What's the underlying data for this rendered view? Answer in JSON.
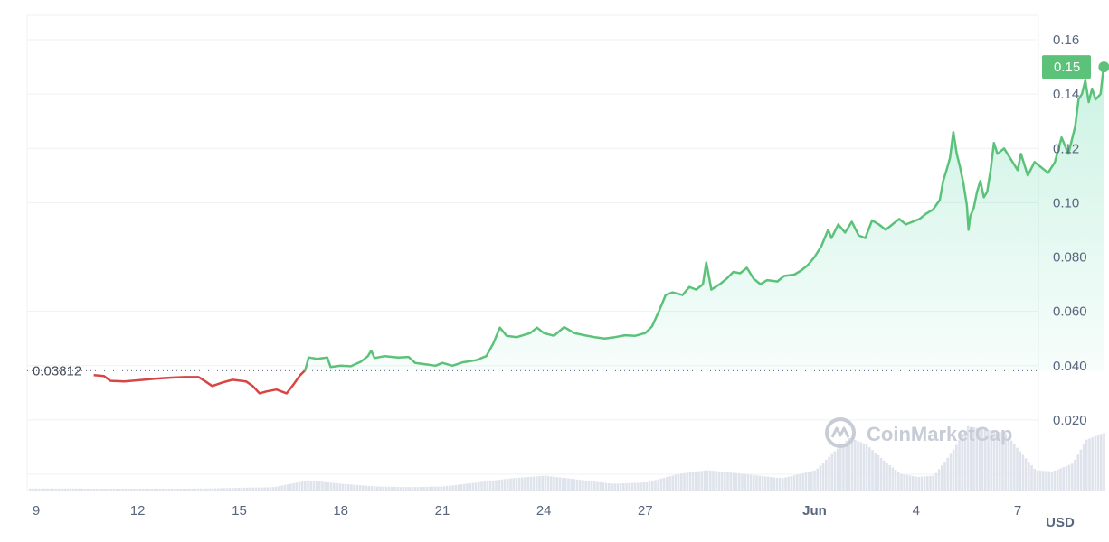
{
  "chart_data": {
    "type": "line",
    "currency_label": "USD",
    "watermark": "CoinMarketCap",
    "reference_label": "0.03812",
    "reference_value": 0.03812,
    "last_price_label": "0.15",
    "last_price_value": 0.15,
    "ylim": [
      0,
      0.165
    ],
    "y_ticks": [
      {
        "label": "0.16",
        "value": 0.16
      },
      {
        "label": "0.14",
        "value": 0.14
      },
      {
        "label": "0.12",
        "value": 0.12
      },
      {
        "label": "0.10",
        "value": 0.1
      },
      {
        "label": "0.080",
        "value": 0.08
      },
      {
        "label": "0.060",
        "value": 0.06
      },
      {
        "label": "0.040",
        "value": 0.04
      },
      {
        "label": "0.020",
        "value": 0.02
      }
    ],
    "x_ticks": [
      {
        "label": "9",
        "day": 9,
        "bold": false
      },
      {
        "label": "12",
        "day": 12,
        "bold": false
      },
      {
        "label": "15",
        "day": 15,
        "bold": false
      },
      {
        "label": "18",
        "day": 18,
        "bold": false
      },
      {
        "label": "21",
        "day": 21,
        "bold": false
      },
      {
        "label": "24",
        "day": 24,
        "bold": false
      },
      {
        "label": "27",
        "day": 27,
        "bold": false
      },
      {
        "label": "Jun",
        "day": 32,
        "bold": true
      },
      {
        "label": "4",
        "day": 35,
        "bold": false
      },
      {
        "label": "7",
        "day": 38,
        "bold": false
      }
    ],
    "xlim": [
      8.9,
      39.3
    ],
    "grid": true,
    "colors": {
      "up": "#16c784",
      "line_up": "#5cc27a",
      "down": "#d84545",
      "volume": "#dfe3ec"
    },
    "price": [
      [
        10.7,
        0.0365
      ],
      [
        11.0,
        0.0362
      ],
      [
        11.2,
        0.0344
      ],
      [
        11.6,
        0.0342
      ],
      [
        12.0,
        0.0346
      ],
      [
        12.5,
        0.0352
      ],
      [
        13.0,
        0.0356
      ],
      [
        13.4,
        0.0358
      ],
      [
        13.8,
        0.0358
      ],
      [
        14.0,
        0.0342
      ],
      [
        14.2,
        0.0325
      ],
      [
        14.5,
        0.0338
      ],
      [
        14.8,
        0.0348
      ],
      [
        15.2,
        0.0342
      ],
      [
        15.4,
        0.0325
      ],
      [
        15.6,
        0.0298
      ],
      [
        15.8,
        0.0305
      ],
      [
        16.1,
        0.0312
      ],
      [
        16.4,
        0.0298
      ],
      [
        16.6,
        0.033
      ],
      [
        16.8,
        0.0365
      ],
      [
        16.95,
        0.0383
      ],
      [
        17.05,
        0.043
      ],
      [
        17.3,
        0.0425
      ],
      [
        17.6,
        0.043
      ],
      [
        17.7,
        0.0395
      ],
      [
        18.0,
        0.04
      ],
      [
        18.3,
        0.0398
      ],
      [
        18.6,
        0.0415
      ],
      [
        18.8,
        0.0435
      ],
      [
        18.9,
        0.0455
      ],
      [
        19.0,
        0.0428
      ],
      [
        19.3,
        0.0435
      ],
      [
        19.7,
        0.043
      ],
      [
        20.0,
        0.0432
      ],
      [
        20.2,
        0.041
      ],
      [
        20.5,
        0.0405
      ],
      [
        20.8,
        0.04
      ],
      [
        21.0,
        0.041
      ],
      [
        21.3,
        0.04
      ],
      [
        21.6,
        0.0412
      ],
      [
        22.0,
        0.042
      ],
      [
        22.3,
        0.0435
      ],
      [
        22.5,
        0.048
      ],
      [
        22.7,
        0.054
      ],
      [
        22.9,
        0.051
      ],
      [
        23.2,
        0.0505
      ],
      [
        23.6,
        0.052
      ],
      [
        23.8,
        0.054
      ],
      [
        24.0,
        0.052
      ],
      [
        24.3,
        0.051
      ],
      [
        24.6,
        0.0542
      ],
      [
        24.9,
        0.052
      ],
      [
        25.2,
        0.0512
      ],
      [
        25.5,
        0.0505
      ],
      [
        25.8,
        0.05
      ],
      [
        26.1,
        0.0505
      ],
      [
        26.4,
        0.0512
      ],
      [
        26.7,
        0.051
      ],
      [
        27.0,
        0.052
      ],
      [
        27.2,
        0.0545
      ],
      [
        27.4,
        0.06
      ],
      [
        27.6,
        0.066
      ],
      [
        27.8,
        0.067
      ],
      [
        28.1,
        0.066
      ],
      [
        28.3,
        0.069
      ],
      [
        28.5,
        0.068
      ],
      [
        28.7,
        0.07
      ],
      [
        28.8,
        0.078
      ],
      [
        28.95,
        0.068
      ],
      [
        29.2,
        0.07
      ],
      [
        29.4,
        0.072
      ],
      [
        29.6,
        0.0745
      ],
      [
        29.8,
        0.074
      ],
      [
        30.0,
        0.076
      ],
      [
        30.2,
        0.072
      ],
      [
        30.4,
        0.07
      ],
      [
        30.6,
        0.0715
      ],
      [
        30.9,
        0.071
      ],
      [
        31.1,
        0.073
      ],
      [
        31.4,
        0.0735
      ],
      [
        31.6,
        0.075
      ],
      [
        31.8,
        0.077
      ],
      [
        32.0,
        0.08
      ],
      [
        32.2,
        0.084
      ],
      [
        32.4,
        0.09
      ],
      [
        32.5,
        0.087
      ],
      [
        32.7,
        0.092
      ],
      [
        32.9,
        0.089
      ],
      [
        33.1,
        0.093
      ],
      [
        33.3,
        0.088
      ],
      [
        33.5,
        0.087
      ],
      [
        33.7,
        0.0935
      ],
      [
        33.9,
        0.092
      ],
      [
        34.1,
        0.09
      ],
      [
        34.3,
        0.092
      ],
      [
        34.5,
        0.094
      ],
      [
        34.7,
        0.092
      ],
      [
        34.9,
        0.093
      ],
      [
        35.1,
        0.094
      ],
      [
        35.3,
        0.096
      ],
      [
        35.5,
        0.0975
      ],
      [
        35.7,
        0.101
      ],
      [
        35.8,
        0.108
      ],
      [
        35.9,
        0.112
      ],
      [
        36.0,
        0.1165
      ],
      [
        36.1,
        0.126
      ],
      [
        36.2,
        0.118
      ],
      [
        36.3,
        0.113
      ],
      [
        36.4,
        0.107
      ],
      [
        36.5,
        0.099
      ],
      [
        36.55,
        0.09
      ],
      [
        36.6,
        0.095
      ],
      [
        36.7,
        0.098
      ],
      [
        36.8,
        0.104
      ],
      [
        36.9,
        0.108
      ],
      [
        37.0,
        0.102
      ],
      [
        37.1,
        0.104
      ],
      [
        37.2,
        0.112
      ],
      [
        37.3,
        0.122
      ],
      [
        37.4,
        0.118
      ],
      [
        37.6,
        0.12
      ],
      [
        37.8,
        0.116
      ],
      [
        37.9,
        0.114
      ],
      [
        38.0,
        0.112
      ],
      [
        38.1,
        0.118
      ],
      [
        38.3,
        0.11
      ],
      [
        38.5,
        0.115
      ],
      [
        38.7,
        0.113
      ],
      [
        38.9,
        0.111
      ],
      [
        39.1,
        0.115
      ],
      [
        39.3,
        0.124
      ],
      [
        39.5,
        0.118
      ],
      [
        39.7,
        0.128
      ],
      [
        39.8,
        0.138
      ],
      [
        39.9,
        0.14
      ],
      [
        40.0,
        0.145
      ],
      [
        40.1,
        0.137
      ],
      [
        40.2,
        0.142
      ],
      [
        40.3,
        0.138
      ],
      [
        40.45,
        0.14
      ],
      [
        40.55,
        0.151
      ]
    ],
    "volume": [
      [
        8.9,
        0.03
      ],
      [
        10.0,
        0.03
      ],
      [
        12.0,
        0.02
      ],
      [
        14.0,
        0.03
      ],
      [
        16.0,
        0.05
      ],
      [
        17.0,
        0.15
      ],
      [
        18.0,
        0.1
      ],
      [
        19.0,
        0.06
      ],
      [
        20.0,
        0.05
      ],
      [
        21.0,
        0.06
      ],
      [
        22.0,
        0.12
      ],
      [
        23.0,
        0.18
      ],
      [
        24.0,
        0.22
      ],
      [
        25.0,
        0.16
      ],
      [
        26.0,
        0.1
      ],
      [
        27.0,
        0.12
      ],
      [
        28.0,
        0.25
      ],
      [
        28.8,
        0.3
      ],
      [
        29.8,
        0.25
      ],
      [
        31.0,
        0.18
      ],
      [
        32.0,
        0.3
      ],
      [
        32.5,
        0.55
      ],
      [
        33.0,
        0.78
      ],
      [
        33.5,
        0.68
      ],
      [
        34.0,
        0.45
      ],
      [
        34.5,
        0.25
      ],
      [
        35.0,
        0.2
      ],
      [
        35.5,
        0.22
      ],
      [
        36.0,
        0.55
      ],
      [
        36.5,
        0.95
      ],
      [
        37.0,
        0.9
      ],
      [
        37.6,
        0.85
      ],
      [
        38.0,
        0.6
      ],
      [
        38.5,
        0.3
      ],
      [
        39.0,
        0.28
      ],
      [
        39.6,
        0.4
      ],
      [
        40.0,
        0.75
      ],
      [
        40.5,
        0.85
      ],
      [
        40.55,
        0.85
      ]
    ]
  }
}
